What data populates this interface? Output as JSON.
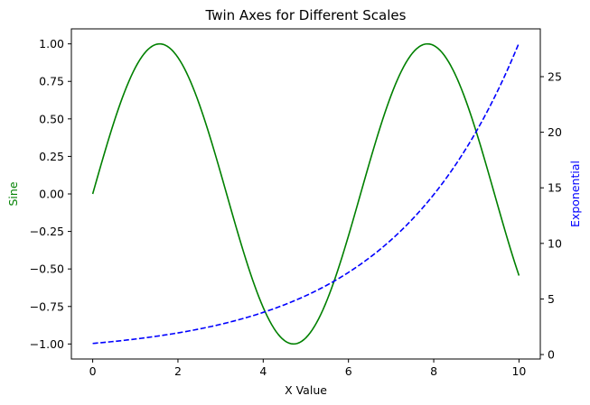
{
  "chart_data": {
    "type": "line",
    "title": "Twin Axes for Different Scales",
    "xlabel": "X Value",
    "ylabel_left": "Sine",
    "ylabel_right": "Exponential",
    "xlim": [
      -0.5,
      10.5
    ],
    "ylim_left": [
      -1.1,
      1.1
    ],
    "ylim_right": [
      -0.4,
      29.3
    ],
    "x_ticks": [
      0,
      2,
      4,
      6,
      8,
      10
    ],
    "x_tick_labels": [
      "0",
      "2",
      "4",
      "6",
      "8",
      "10"
    ],
    "left_ticks": [
      -1.0,
      -0.75,
      -0.5,
      -0.25,
      0.0,
      0.25,
      0.5,
      0.75,
      1.0
    ],
    "left_tick_labels": [
      "−1.00",
      "−0.75",
      "−0.50",
      "−0.25",
      "0.00",
      "0.25",
      "0.50",
      "0.75",
      "1.00"
    ],
    "right_ticks": [
      0,
      5,
      10,
      15,
      20,
      25
    ],
    "right_tick_labels": [
      "0",
      "5",
      "10",
      "15",
      "20",
      "25"
    ],
    "grid": false,
    "series": [
      {
        "name": "Sine",
        "axis": "left",
        "color": "#008000",
        "linestyle": "solid",
        "x": [
          0,
          0.5,
          1,
          1.5,
          2,
          2.5,
          3,
          3.5,
          4,
          4.5,
          5,
          5.5,
          6,
          6.5,
          7,
          7.5,
          8,
          8.5,
          9,
          9.5,
          10
        ],
        "y": [
          0.0,
          0.479,
          0.841,
          0.997,
          0.909,
          0.598,
          0.141,
          -0.351,
          -0.757,
          -0.978,
          -0.959,
          -0.706,
          -0.279,
          0.215,
          0.657,
          0.938,
          0.989,
          0.798,
          0.412,
          -0.075,
          -0.544
        ]
      },
      {
        "name": "Exponential",
        "axis": "right",
        "color": "#0000ff",
        "linestyle": "dashed",
        "x": [
          0,
          0.5,
          1,
          1.5,
          2,
          2.5,
          3,
          3.5,
          4,
          4.5,
          5,
          5.5,
          6,
          6.5,
          7,
          7.5,
          8,
          8.5,
          9,
          9.5,
          10
        ],
        "y": [
          1.0,
          1.18,
          1.4,
          1.65,
          1.95,
          2.3,
          2.72,
          3.21,
          3.79,
          4.48,
          5.29,
          6.25,
          7.39,
          8.72,
          10.3,
          12.18,
          14.39,
          16.99,
          20.09,
          23.73,
          28.03
        ]
      }
    ]
  }
}
